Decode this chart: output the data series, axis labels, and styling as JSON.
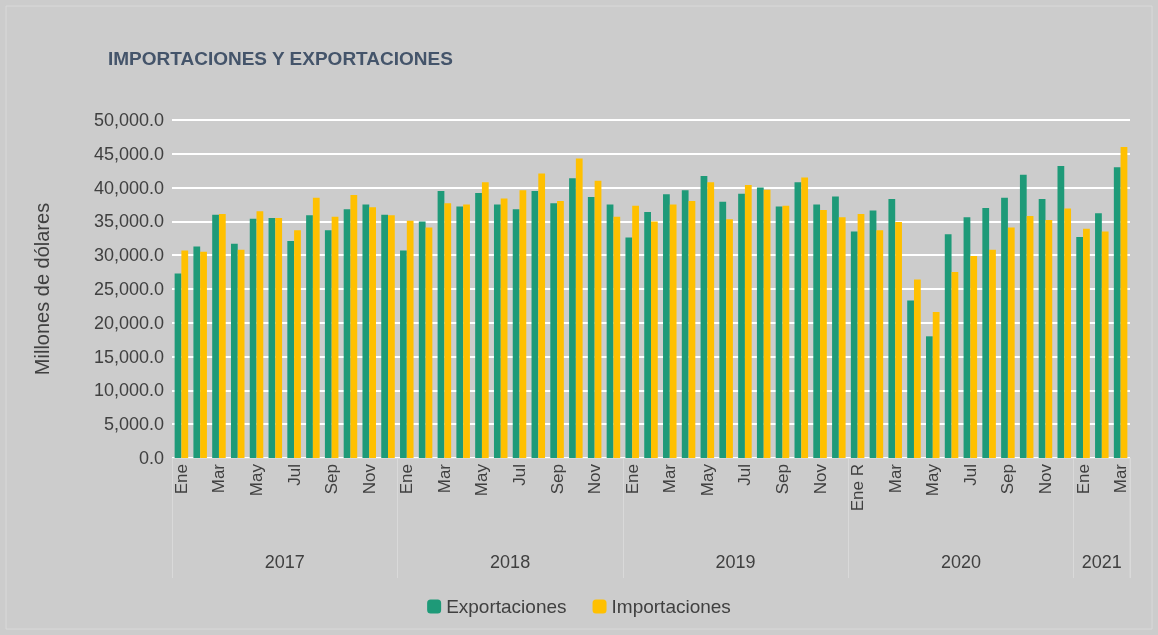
{
  "chart_data": {
    "type": "bar",
    "title": "IMPORTACIONES Y EXPORTACIONES",
    "ylabel": "Millones de dólares",
    "categories": [
      "Ene",
      null,
      "Mar",
      null,
      "May",
      null,
      "Jul",
      null,
      "Sep",
      null,
      "Nov",
      null,
      "Ene",
      null,
      "Mar",
      null,
      "May",
      null,
      "Jul",
      null,
      "Sep",
      null,
      "Nov",
      null,
      "Ene",
      null,
      "Mar",
      null,
      "May",
      null,
      "Jul",
      null,
      "Sep",
      null,
      "Nov",
      null,
      "Ene R",
      null,
      "Mar",
      null,
      "May",
      null,
      "Jul",
      null,
      "Sep",
      null,
      "Nov",
      null,
      "Ene",
      null,
      "Mar"
    ],
    "series": [
      {
        "name": "Exportaciones",
        "color": "#1e9a78",
        "values": [
          27300,
          31300,
          36000,
          31700,
          35400,
          35500,
          32100,
          35900,
          33700,
          36800,
          37500,
          36000,
          30700,
          35000,
          39500,
          37200,
          39200,
          37500,
          36800,
          39500,
          37700,
          41400,
          38600,
          37500,
          32600,
          36400,
          39000,
          39600,
          41700,
          37900,
          39100,
          40000,
          37200,
          40800,
          37500,
          38700,
          33500,
          36600,
          38300,
          23300,
          18000,
          33100,
          35600,
          37000,
          38500,
          41900,
          38300,
          43200,
          32700,
          36200,
          43000
        ]
      },
      {
        "name": "Importaciones",
        "color": "#ffc000",
        "values": [
          30700,
          30500,
          36100,
          30800,
          36500,
          35500,
          33700,
          38500,
          35700,
          38900,
          37100,
          35900,
          35100,
          34100,
          37700,
          37500,
          40800,
          38400,
          39600,
          42100,
          38000,
          44300,
          41000,
          35700,
          37300,
          35000,
          37500,
          38000,
          40800,
          35300,
          40400,
          39700,
          37300,
          41500,
          36700,
          35600,
          36100,
          33700,
          34900,
          26400,
          21600,
          27500,
          29900,
          30800,
          34100,
          35800,
          35200,
          36900,
          33900,
          33500,
          46000
        ]
      }
    ],
    "ylim": [
      0,
      50000
    ],
    "yticks": [
      {
        "value": 0,
        "label": "0.0"
      },
      {
        "value": 5000,
        "label": "5,000.0"
      },
      {
        "value": 10000,
        "label": "10,000.0"
      },
      {
        "value": 15000,
        "label": "15,000.0"
      },
      {
        "value": 20000,
        "label": "20,000.0"
      },
      {
        "value": 25000,
        "label": "25,000.0"
      },
      {
        "value": 30000,
        "label": "30,000.0"
      },
      {
        "value": 35000,
        "label": "35,000.0"
      },
      {
        "value": 40000,
        "label": "40,000.0"
      },
      {
        "value": 45000,
        "label": "45,000.0"
      },
      {
        "value": 50000,
        "label": "50,000.0"
      }
    ],
    "grid": "y",
    "legend": "bottom",
    "annotations": [
      "2017",
      "2018",
      "2019",
      "2020",
      "2021"
    ]
  }
}
